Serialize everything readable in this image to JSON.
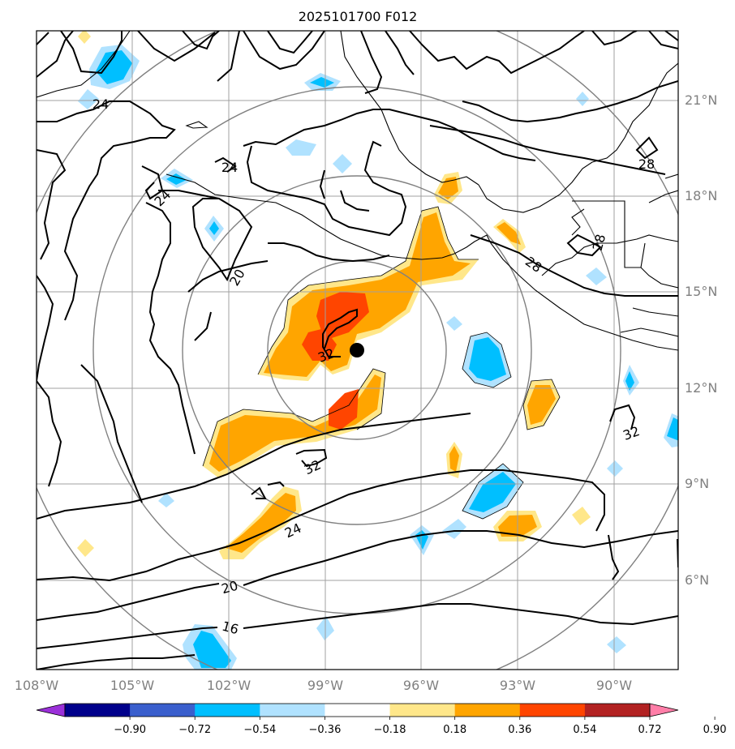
{
  "title": "2025101700 F012",
  "lon_labels": [
    "108°W",
    "105°W",
    "102°W",
    "99°W",
    "96°W",
    "93°W",
    "90°W"
  ],
  "lat_labels": [
    "21°N",
    "18°N",
    "15°N",
    "12°N",
    "9°N",
    "6°N"
  ],
  "colorbar": {
    "ticks": [
      "−0.90",
      "−0.72",
      "−0.54",
      "−0.36",
      "−0.18",
      "0.18",
      "0.36",
      "0.54",
      "0.72",
      "0.90"
    ],
    "colors": [
      "#9b30d9",
      "#00008b",
      "#3a5fcd",
      "#00bfff",
      "#b0e2ff",
      "#ffffff",
      "#ffe78a",
      "#ffa500",
      "#ff4500",
      "#b22222",
      "#ff7ea8"
    ]
  },
  "contour_labels": [
    "24",
    "24",
    "24",
    "20",
    "28",
    "28",
    "28",
    "32",
    "32",
    "32",
    "24",
    "20",
    "16"
  ],
  "storm_center": {
    "lon": -98.0,
    "lat": 13.2
  },
  "colors": {
    "grid": "#a0a0a0",
    "ring": "#808080",
    "contour": "#000000"
  }
}
